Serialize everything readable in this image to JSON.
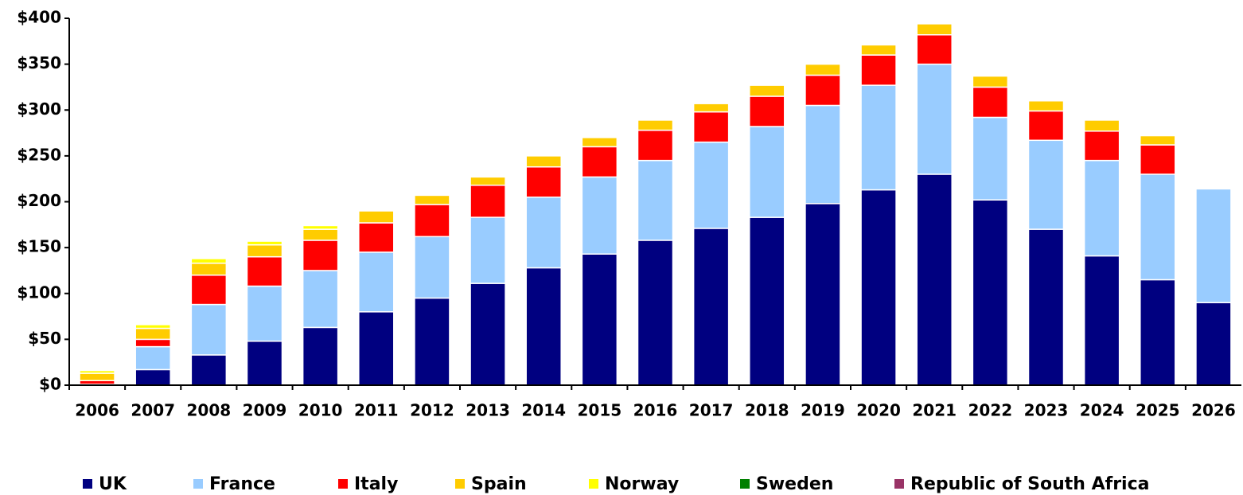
{
  "chart_data": {
    "type": "stacked_bar",
    "categories": [
      "2006",
      "2007",
      "2008",
      "2009",
      "2010",
      "2011",
      "2012",
      "2013",
      "2014",
      "2015",
      "2016",
      "2017",
      "2018",
      "2019",
      "2020",
      "2021",
      "2022",
      "2023",
      "2024",
      "2025",
      "2026"
    ],
    "series": [
      {
        "name": "UK",
        "color": "#000080",
        "values": [
          1,
          17,
          33,
          48,
          63,
          80,
          95,
          111,
          128,
          143,
          158,
          171,
          183,
          198,
          213,
          230,
          202,
          170,
          141,
          115,
          90
        ]
      },
      {
        "name": "France",
        "color": "#99ccff",
        "values": [
          0,
          25,
          55,
          60,
          62,
          65,
          67,
          72,
          77,
          84,
          87,
          94,
          99,
          107,
          114,
          120,
          90,
          97,
          104,
          115,
          124
        ]
      },
      {
        "name": "Italy",
        "color": "#ff0000",
        "values": [
          4,
          8,
          32,
          32,
          33,
          32,
          35,
          35,
          33,
          33,
          33,
          33,
          33,
          33,
          33,
          32,
          33,
          32,
          32,
          32,
          0
        ]
      },
      {
        "name": "Spain",
        "color": "#ffcc00",
        "values": [
          8,
          12,
          13,
          13,
          12,
          13,
          10,
          9,
          12,
          10,
          11,
          9,
          12,
          12,
          11,
          12,
          12,
          11,
          12,
          10,
          0
        ]
      },
      {
        "name": "Norway",
        "color": "#ffff00",
        "values": [
          3,
          4,
          5,
          4,
          4,
          0,
          0,
          0,
          0,
          0,
          0,
          0,
          0,
          0,
          0,
          0,
          0,
          0,
          0,
          0,
          0
        ]
      },
      {
        "name": "Sweden",
        "color": "#008000",
        "values": [
          0,
          0,
          0,
          0,
          0,
          0,
          0,
          0,
          0,
          0,
          0,
          0,
          0,
          0,
          0,
          0,
          0,
          0,
          0,
          0,
          0
        ]
      },
      {
        "name": "Republic of South Africa",
        "color": "#993366",
        "values": [
          0,
          0,
          0,
          0,
          0,
          0,
          0,
          0,
          0,
          0,
          0,
          0,
          0,
          0,
          0,
          0,
          0,
          0,
          0,
          0,
          0
        ]
      }
    ],
    "ylim": [
      0,
      400
    ],
    "yticks": [
      {
        "value": 0,
        "label": "$0"
      },
      {
        "value": 50,
        "label": "$50"
      },
      {
        "value": 100,
        "label": "$100"
      },
      {
        "value": 150,
        "label": "$150"
      },
      {
        "value": 200,
        "label": "$200"
      },
      {
        "value": 250,
        "label": "$250"
      },
      {
        "value": 300,
        "label": "$300"
      },
      {
        "value": 350,
        "label": "$350"
      },
      {
        "value": 400,
        "label": "$400"
      }
    ],
    "legend": "bottom"
  }
}
